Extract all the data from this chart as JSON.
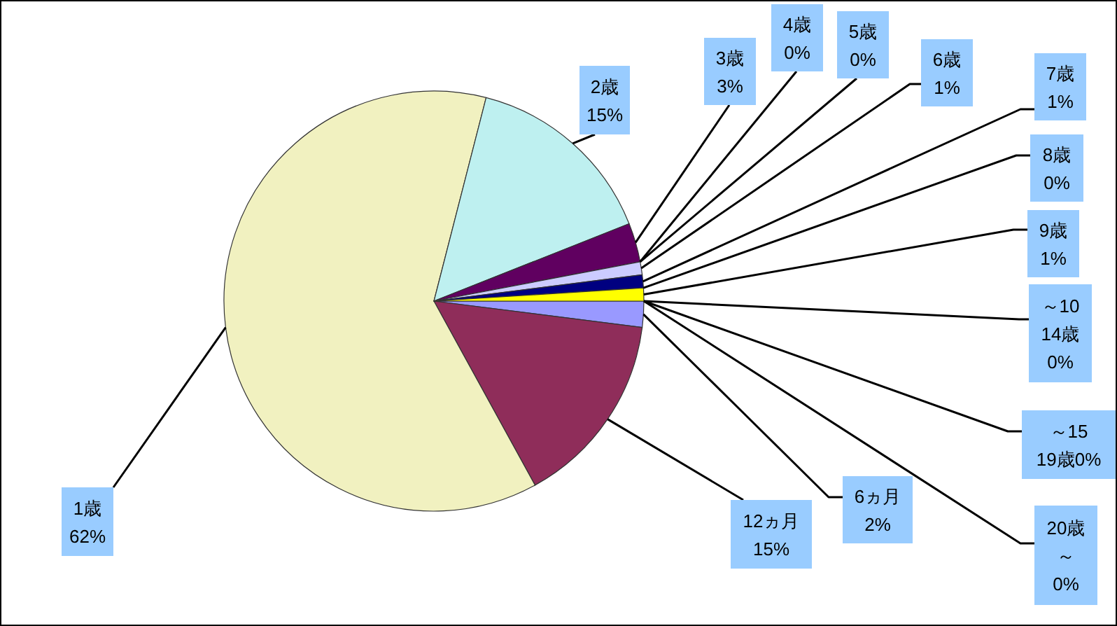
{
  "chart_data": {
    "type": "pie",
    "categories": [
      "6ヵ月",
      "12ヵ月",
      "1歳",
      "2歳",
      "3歳",
      "4歳",
      "5歳",
      "6歳",
      "7歳",
      "8歳",
      "9歳",
      "～10\n14歳",
      "～15\n19歳",
      "20歳～"
    ],
    "values": [
      2,
      15,
      62,
      15,
      3,
      0,
      0,
      1,
      1,
      0,
      1,
      0,
      0,
      0
    ],
    "value_labels": [
      "2%",
      "15%",
      "62%",
      "15%",
      "3%",
      "0%",
      "0%",
      "1%",
      "1%",
      "0%",
      "1%",
      "0%",
      "0%",
      "0%"
    ],
    "colors": [
      "#9999ff",
      "#8f2d5a",
      "#f1f1c0",
      "#bef0f0",
      "#600060",
      null,
      null,
      "#ccccff",
      "#000080",
      null,
      "#ffff00",
      null,
      null,
      null
    ]
  }
}
